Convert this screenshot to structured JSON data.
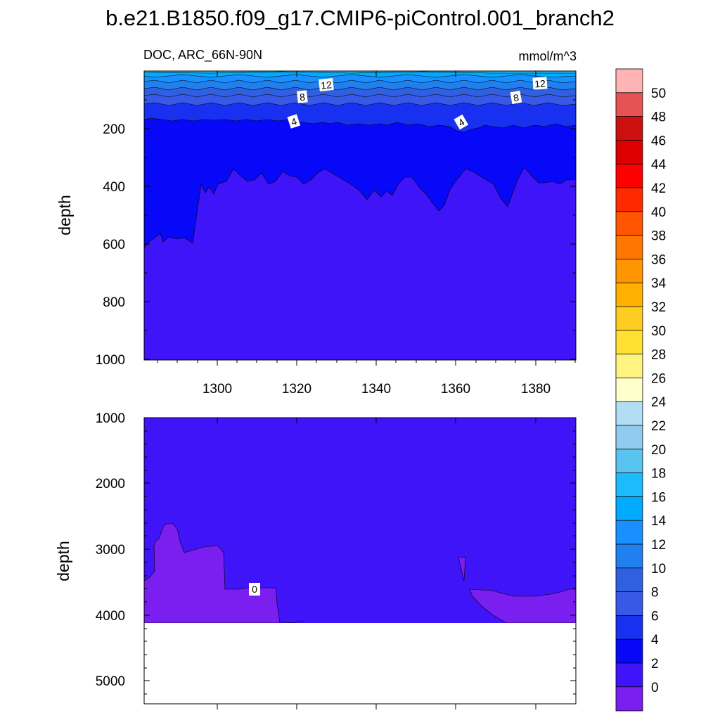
{
  "title": "b.e21.B1850.f09_g17.CMIP6-piControl.001_branch2",
  "chart_data": [
    {
      "type": "contour",
      "panel": "upper",
      "left_label": "DOC, ARC_66N-90N",
      "right_label": "mmol/m^3",
      "xlabel": "",
      "ylabel": "depth",
      "xlim": [
        1282,
        1390
      ],
      "ylim": [
        1000,
        0
      ],
      "xticks": [
        "1300",
        "1320",
        "1340",
        "1360",
        "1380"
      ],
      "yticks": [
        "200",
        "400",
        "600",
        "800",
        "1000"
      ],
      "contour_labels": [
        "12",
        "8",
        "4",
        "12",
        "8",
        "4"
      ]
    },
    {
      "type": "contour",
      "panel": "lower",
      "xlabel": "",
      "ylabel": "depth",
      "xlim": [
        1282,
        1390
      ],
      "ylim": [
        5400,
        1000
      ],
      "yticks": [
        "1000",
        "2000",
        "3000",
        "4000",
        "5000"
      ],
      "bottom_depth": 4120,
      "contour_labels": [
        "0"
      ]
    }
  ],
  "colorbar": {
    "labels": [
      "50",
      "48",
      "46",
      "44",
      "42",
      "40",
      "38",
      "36",
      "34",
      "32",
      "30",
      "28",
      "26",
      "24",
      "22",
      "20",
      "18",
      "16",
      "14",
      "12",
      "10",
      "8",
      "6",
      "4",
      "2",
      "0"
    ],
    "colors": [
      "#ffb3b3",
      "#e55353",
      "#cc1010",
      "#dd0000",
      "#ff0000",
      "#ff2a00",
      "#ff5500",
      "#ff7700",
      "#ff9500",
      "#ffb000",
      "#ffcc22",
      "#ffe033",
      "#fff480",
      "#ffffcc",
      "#b3ddf5",
      "#90ccee",
      "#5ac4f0",
      "#1cbcfc",
      "#00aaff",
      "#1890ff",
      "#2080f0",
      "#3060e0",
      "#3858e8",
      "#1830f0",
      "#0808f8",
      "#4014f8",
      "#7a1ff0"
    ]
  }
}
